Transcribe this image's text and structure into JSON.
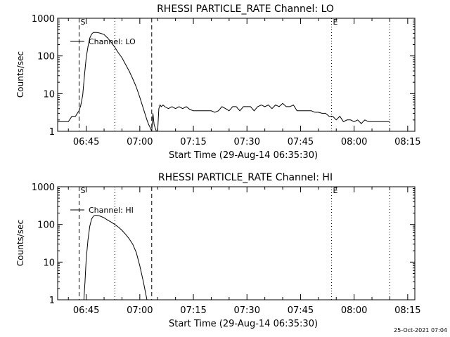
{
  "footer": {
    "timestamp": "25-Oct-2021 07:04"
  },
  "chart_data": [
    {
      "type": "line",
      "title": "RHESSI PARTICLE_RATE Channel: LO",
      "xlabel": "Start Time (29-Aug-14 06:35:30)",
      "ylabel": "Counts/sec",
      "yscale": "log",
      "ylim": [
        1,
        1000
      ],
      "xlim": [
        "06:37:00",
        "08:17:00"
      ],
      "x_ticks": [
        "06:45",
        "07:00",
        "07:15",
        "07:30",
        "07:45",
        "08:00",
        "08:15"
      ],
      "y_ticks": [
        "1",
        "10",
        "100",
        "1000"
      ],
      "legend": {
        "position": "top-left",
        "entries": [
          "Channel: LO"
        ]
      },
      "markers": [
        {
          "label": "S",
          "time": "06:43:00",
          "style": "dashed"
        },
        {
          "label": "",
          "time": "06:53:00",
          "style": "dotted"
        },
        {
          "label": "",
          "time": "07:03:20",
          "style": "dashed"
        },
        {
          "label": "E",
          "time": "07:53:40",
          "style": "dotted"
        },
        {
          "label": "",
          "time": "08:10:00",
          "style": "dotted"
        }
      ],
      "series": [
        {
          "x": [
            "06:37:00",
            "06:39:00",
            "06:40:00",
            "06:41:00",
            "06:41:40",
            "06:42:00",
            "06:42:30",
            "06:43:00",
            "06:43:30",
            "06:44:00",
            "06:44:30",
            "06:45:00",
            "06:45:30",
            "06:46:00",
            "06:46:30",
            "06:47:00",
            "06:48:00",
            "06:49:00",
            "06:50:00",
            "06:51:00",
            "06:52:00",
            "06:53:00",
            "06:54:00",
            "06:55:00",
            "06:56:00",
            "06:57:00",
            "06:58:00",
            "06:59:00",
            "07:00:00",
            "07:01:00",
            "07:02:00",
            "07:02:30",
            "07:03:00",
            "07:03:20",
            "07:03:40",
            "07:04:00",
            "07:04:20",
            "07:04:40",
            "07:05:00",
            "07:05:20",
            "07:05:40",
            "07:06:00",
            "07:06:30",
            "07:07:00",
            "07:08:00",
            "07:09:00",
            "07:10:00",
            "07:11:00",
            "07:12:00",
            "07:13:00",
            "07:14:00",
            "07:15:00",
            "07:16:00",
            "07:17:00",
            "07:18:00",
            "07:19:00",
            "07:20:00",
            "07:21:00",
            "07:22:00",
            "07:23:00",
            "07:24:00",
            "07:25:00",
            "07:26:00",
            "07:27:00",
            "07:28:00",
            "07:29:00",
            "07:30:00",
            "07:31:00",
            "07:32:00",
            "07:33:00",
            "07:34:00",
            "07:35:00",
            "07:36:00",
            "07:37:00",
            "07:38:00",
            "07:39:00",
            "07:40:00",
            "07:41:00",
            "07:42:00",
            "07:43:00",
            "07:44:00",
            "07:45:00",
            "07:46:00",
            "07:47:00",
            "07:48:00",
            "07:49:00",
            "07:50:00",
            "07:51:00",
            "07:52:00",
            "07:53:00",
            "07:54:00",
            "07:55:00",
            "07:56:00",
            "07:57:00",
            "07:58:00",
            "07:59:00",
            "08:00:00",
            "08:01:00",
            "08:02:00",
            "08:03:00",
            "08:04:00",
            "08:05:00",
            "08:06:00",
            "08:07:00",
            "08:08:00",
            "08:09:00",
            "08:10:00"
          ],
          "y": [
            1.8,
            1.8,
            1.8,
            2.5,
            2.5,
            2.5,
            3.0,
            3.5,
            5.0,
            9,
            30,
            90,
            180,
            300,
            380,
            420,
            420,
            400,
            370,
            300,
            230,
            170,
            120,
            90,
            60,
            40,
            25,
            15,
            8,
            4,
            2,
            1.5,
            1.2,
            1.0,
            3,
            1.5,
            1.2,
            1.0,
            1.0,
            4,
            5,
            4.5,
            5,
            4.5,
            4,
            4.5,
            4,
            4.5,
            4,
            4.5,
            3.8,
            3.5,
            3.5,
            3.5,
            3.5,
            3.5,
            3.5,
            3.2,
            3.5,
            4.5,
            4,
            3.5,
            4.5,
            4.5,
            3.5,
            4.5,
            4.5,
            4.5,
            3.5,
            4.5,
            5,
            4.5,
            5,
            4,
            5,
            4.5,
            5.5,
            4.5,
            4.5,
            5,
            3.5,
            3.5,
            3.5,
            3.5,
            3.5,
            3.2,
            3.2,
            3.0,
            3.0,
            2.5,
            2.5,
            2.0,
            2.5,
            1.8,
            2.0,
            2.0,
            1.8,
            2.0,
            1.6,
            2.0,
            1.8,
            1.8,
            1.8,
            1.8,
            1.8,
            1.8,
            1.8
          ]
        }
      ]
    },
    {
      "type": "line",
      "title": "RHESSI PARTICLE_RATE Channel: HI",
      "xlabel": "Start Time (29-Aug-14 06:35:30)",
      "ylabel": "Counts/sec",
      "yscale": "log",
      "ylim": [
        1,
        1000
      ],
      "xlim": [
        "06:37:00",
        "08:17:00"
      ],
      "x_ticks": [
        "06:45",
        "07:00",
        "07:15",
        "07:30",
        "07:45",
        "08:00",
        "08:15"
      ],
      "y_ticks": [
        "1",
        "10",
        "100",
        "1000"
      ],
      "legend": {
        "position": "top-left",
        "entries": [
          "Channel: HI"
        ]
      },
      "markers": [
        {
          "label": "S",
          "time": "06:43:00",
          "style": "dashed"
        },
        {
          "label": "",
          "time": "06:53:00",
          "style": "dotted"
        },
        {
          "label": "",
          "time": "07:03:20",
          "style": "dashed"
        },
        {
          "label": "E",
          "time": "07:53:40",
          "style": "dotted"
        },
        {
          "label": "",
          "time": "08:10:00",
          "style": "dotted"
        }
      ],
      "series": [
        {
          "x": [
            "06:44:20",
            "06:44:40",
            "06:45:00",
            "06:45:30",
            "06:46:00",
            "06:46:30",
            "06:47:00",
            "06:47:30",
            "06:48:00",
            "06:49:00",
            "06:50:00",
            "06:51:00",
            "06:52:00",
            "06:53:00",
            "06:54:00",
            "06:55:00",
            "06:56:00",
            "06:57:00",
            "06:58:00",
            "06:59:00",
            "07:00:00",
            "07:01:00",
            "07:02:00"
          ],
          "y": [
            1,
            3,
            12,
            40,
            90,
            140,
            165,
            175,
            175,
            165,
            150,
            130,
            115,
            100,
            85,
            70,
            55,
            42,
            30,
            18,
            8,
            3,
            1
          ]
        }
      ]
    }
  ]
}
